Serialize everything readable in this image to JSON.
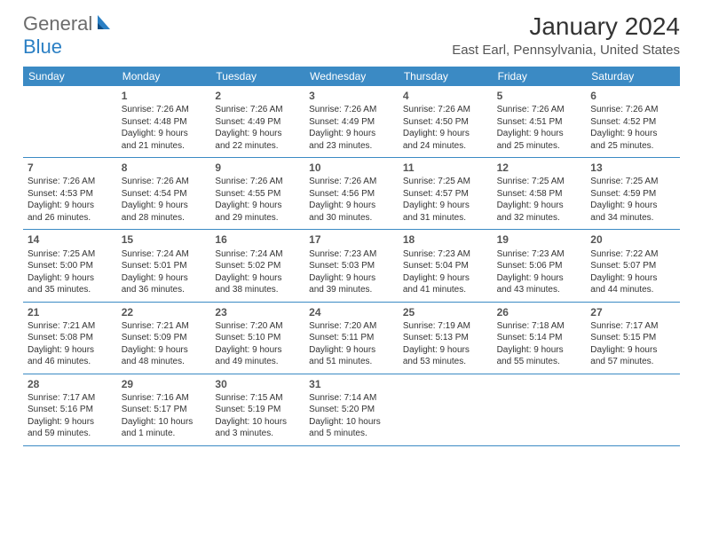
{
  "logo": {
    "general": "General",
    "blue": "Blue"
  },
  "title": "January 2024",
  "location": "East Earl, Pennsylvania, United States",
  "colors": {
    "header_bg": "#3b8ac4",
    "header_text": "#ffffff",
    "divider": "#3b8ac4",
    "logo_blue": "#2a7fc4",
    "logo_gray": "#6b6b6b"
  },
  "weekdays": [
    "Sunday",
    "Monday",
    "Tuesday",
    "Wednesday",
    "Thursday",
    "Friday",
    "Saturday"
  ],
  "weeks": [
    [
      {
        "n": "",
        "lines": []
      },
      {
        "n": "1",
        "lines": [
          "Sunrise: 7:26 AM",
          "Sunset: 4:48 PM",
          "Daylight: 9 hours",
          "and 21 minutes."
        ]
      },
      {
        "n": "2",
        "lines": [
          "Sunrise: 7:26 AM",
          "Sunset: 4:49 PM",
          "Daylight: 9 hours",
          "and 22 minutes."
        ]
      },
      {
        "n": "3",
        "lines": [
          "Sunrise: 7:26 AM",
          "Sunset: 4:49 PM",
          "Daylight: 9 hours",
          "and 23 minutes."
        ]
      },
      {
        "n": "4",
        "lines": [
          "Sunrise: 7:26 AM",
          "Sunset: 4:50 PM",
          "Daylight: 9 hours",
          "and 24 minutes."
        ]
      },
      {
        "n": "5",
        "lines": [
          "Sunrise: 7:26 AM",
          "Sunset: 4:51 PM",
          "Daylight: 9 hours",
          "and 25 minutes."
        ]
      },
      {
        "n": "6",
        "lines": [
          "Sunrise: 7:26 AM",
          "Sunset: 4:52 PM",
          "Daylight: 9 hours",
          "and 25 minutes."
        ]
      }
    ],
    [
      {
        "n": "7",
        "lines": [
          "Sunrise: 7:26 AM",
          "Sunset: 4:53 PM",
          "Daylight: 9 hours",
          "and 26 minutes."
        ]
      },
      {
        "n": "8",
        "lines": [
          "Sunrise: 7:26 AM",
          "Sunset: 4:54 PM",
          "Daylight: 9 hours",
          "and 28 minutes."
        ]
      },
      {
        "n": "9",
        "lines": [
          "Sunrise: 7:26 AM",
          "Sunset: 4:55 PM",
          "Daylight: 9 hours",
          "and 29 minutes."
        ]
      },
      {
        "n": "10",
        "lines": [
          "Sunrise: 7:26 AM",
          "Sunset: 4:56 PM",
          "Daylight: 9 hours",
          "and 30 minutes."
        ]
      },
      {
        "n": "11",
        "lines": [
          "Sunrise: 7:25 AM",
          "Sunset: 4:57 PM",
          "Daylight: 9 hours",
          "and 31 minutes."
        ]
      },
      {
        "n": "12",
        "lines": [
          "Sunrise: 7:25 AM",
          "Sunset: 4:58 PM",
          "Daylight: 9 hours",
          "and 32 minutes."
        ]
      },
      {
        "n": "13",
        "lines": [
          "Sunrise: 7:25 AM",
          "Sunset: 4:59 PM",
          "Daylight: 9 hours",
          "and 34 minutes."
        ]
      }
    ],
    [
      {
        "n": "14",
        "lines": [
          "Sunrise: 7:25 AM",
          "Sunset: 5:00 PM",
          "Daylight: 9 hours",
          "and 35 minutes."
        ]
      },
      {
        "n": "15",
        "lines": [
          "Sunrise: 7:24 AM",
          "Sunset: 5:01 PM",
          "Daylight: 9 hours",
          "and 36 minutes."
        ]
      },
      {
        "n": "16",
        "lines": [
          "Sunrise: 7:24 AM",
          "Sunset: 5:02 PM",
          "Daylight: 9 hours",
          "and 38 minutes."
        ]
      },
      {
        "n": "17",
        "lines": [
          "Sunrise: 7:23 AM",
          "Sunset: 5:03 PM",
          "Daylight: 9 hours",
          "and 39 minutes."
        ]
      },
      {
        "n": "18",
        "lines": [
          "Sunrise: 7:23 AM",
          "Sunset: 5:04 PM",
          "Daylight: 9 hours",
          "and 41 minutes."
        ]
      },
      {
        "n": "19",
        "lines": [
          "Sunrise: 7:23 AM",
          "Sunset: 5:06 PM",
          "Daylight: 9 hours",
          "and 43 minutes."
        ]
      },
      {
        "n": "20",
        "lines": [
          "Sunrise: 7:22 AM",
          "Sunset: 5:07 PM",
          "Daylight: 9 hours",
          "and 44 minutes."
        ]
      }
    ],
    [
      {
        "n": "21",
        "lines": [
          "Sunrise: 7:21 AM",
          "Sunset: 5:08 PM",
          "Daylight: 9 hours",
          "and 46 minutes."
        ]
      },
      {
        "n": "22",
        "lines": [
          "Sunrise: 7:21 AM",
          "Sunset: 5:09 PM",
          "Daylight: 9 hours",
          "and 48 minutes."
        ]
      },
      {
        "n": "23",
        "lines": [
          "Sunrise: 7:20 AM",
          "Sunset: 5:10 PM",
          "Daylight: 9 hours",
          "and 49 minutes."
        ]
      },
      {
        "n": "24",
        "lines": [
          "Sunrise: 7:20 AM",
          "Sunset: 5:11 PM",
          "Daylight: 9 hours",
          "and 51 minutes."
        ]
      },
      {
        "n": "25",
        "lines": [
          "Sunrise: 7:19 AM",
          "Sunset: 5:13 PM",
          "Daylight: 9 hours",
          "and 53 minutes."
        ]
      },
      {
        "n": "26",
        "lines": [
          "Sunrise: 7:18 AM",
          "Sunset: 5:14 PM",
          "Daylight: 9 hours",
          "and 55 minutes."
        ]
      },
      {
        "n": "27",
        "lines": [
          "Sunrise: 7:17 AM",
          "Sunset: 5:15 PM",
          "Daylight: 9 hours",
          "and 57 minutes."
        ]
      }
    ],
    [
      {
        "n": "28",
        "lines": [
          "Sunrise: 7:17 AM",
          "Sunset: 5:16 PM",
          "Daylight: 9 hours",
          "and 59 minutes."
        ]
      },
      {
        "n": "29",
        "lines": [
          "Sunrise: 7:16 AM",
          "Sunset: 5:17 PM",
          "Daylight: 10 hours",
          "and 1 minute."
        ]
      },
      {
        "n": "30",
        "lines": [
          "Sunrise: 7:15 AM",
          "Sunset: 5:19 PM",
          "Daylight: 10 hours",
          "and 3 minutes."
        ]
      },
      {
        "n": "31",
        "lines": [
          "Sunrise: 7:14 AM",
          "Sunset: 5:20 PM",
          "Daylight: 10 hours",
          "and 5 minutes."
        ]
      },
      {
        "n": "",
        "lines": []
      },
      {
        "n": "",
        "lines": []
      },
      {
        "n": "",
        "lines": []
      }
    ]
  ]
}
